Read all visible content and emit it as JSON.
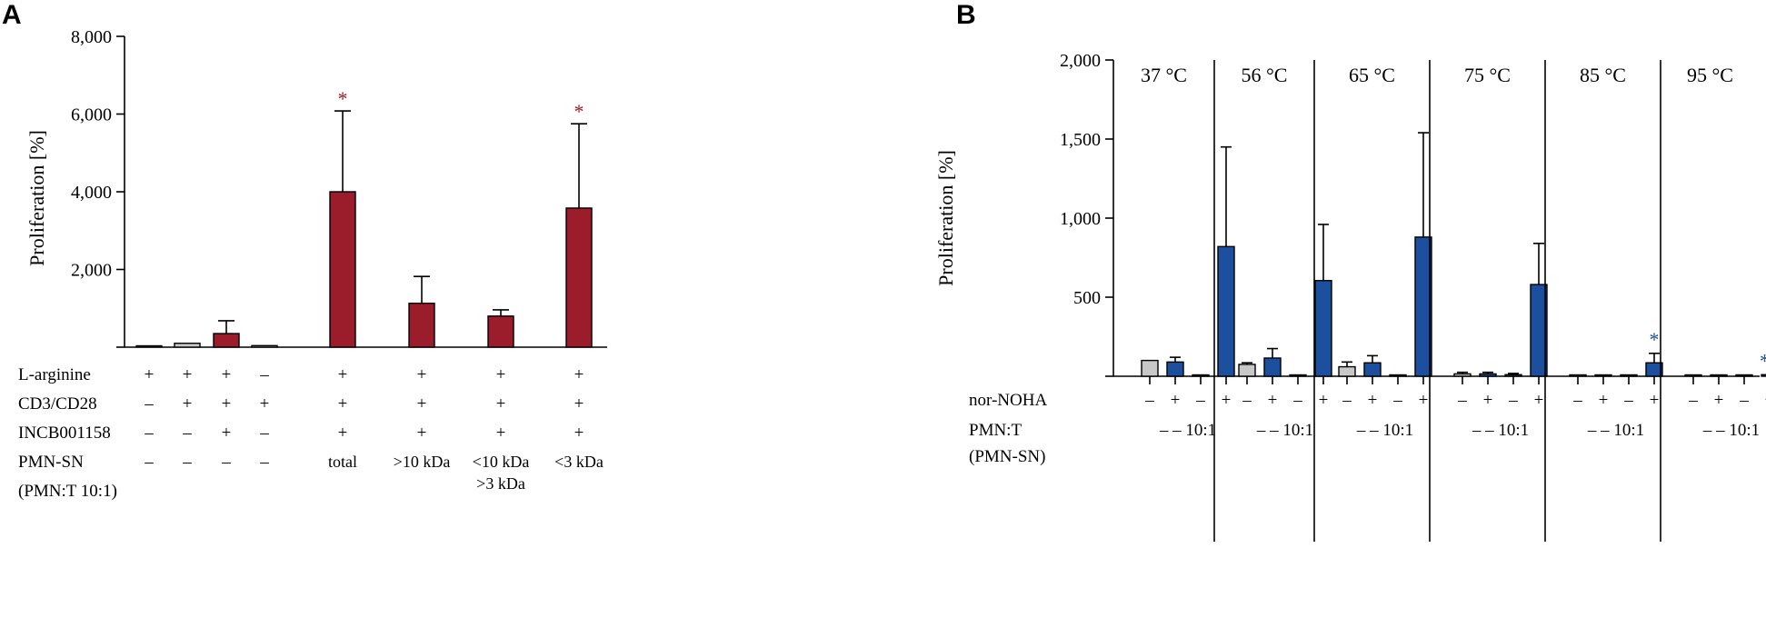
{
  "colors": {
    "red": "#9b1c2b",
    "blue": "#1d4f9f",
    "grey": "#c8c8c8",
    "axis": "#000000"
  },
  "chart_data": [
    {
      "type": "bar",
      "panel": "A",
      "ylabel": "Proliferation [%]",
      "ylim": [
        0,
        8000
      ],
      "yticks": [
        0,
        2000,
        4000,
        6000,
        8000
      ],
      "ytick_labels": [
        "",
        "2,000",
        "4,000",
        "6,000",
        "8,000"
      ],
      "values": [
        0,
        100,
        350,
        40,
        4000,
        1130,
        800,
        3580
      ],
      "errors": [
        0,
        0,
        330,
        0,
        2080,
        690,
        160,
        2170
      ],
      "colors": [
        "grey",
        "grey",
        "red",
        "grey",
        "red",
        "red",
        "red",
        "red"
      ],
      "significance": [
        "",
        "",
        "",
        "",
        "*",
        "",
        "",
        "*"
      ],
      "row_labels": [
        "L-arginine",
        "CD3/CD28",
        "INCB001158",
        "PMN-SN",
        "(PMN:T 10:1)"
      ],
      "rows": [
        [
          "+",
          "+",
          "+",
          "–",
          "+",
          "+",
          "+",
          "+"
        ],
        [
          "–",
          "+",
          "+",
          "+",
          "+",
          "+",
          "+",
          "+"
        ],
        [
          "–",
          "–",
          "+",
          "–",
          "+",
          "+",
          "+",
          "+"
        ],
        [
          "–",
          "–",
          "–",
          "–",
          "total",
          ">10 kDa",
          "<10 kDa",
          "<3 kDa"
        ]
      ],
      "pmn_extra": [
        "",
        "",
        "",
        "",
        "",
        "",
        ">3 kDa",
        ""
      ]
    },
    {
      "type": "bar",
      "panel": "B",
      "ylabel": "Proliferation [%]",
      "ylim": [
        0,
        2000
      ],
      "yticks": [
        0,
        500,
        1000,
        1500,
        2000
      ],
      "ytick_labels": [
        "",
        "500",
        "1,000",
        "1,500",
        "2,000"
      ],
      "groups": [
        {
          "label": "37 °C",
          "values": [
            100,
            90,
            0,
            820
          ],
          "errors": [
            0,
            30,
            0,
            630
          ],
          "colors": [
            "grey",
            "blue",
            "blue",
            "blue"
          ],
          "significance": ""
        },
        {
          "label": "56 °C",
          "values": [
            75,
            115,
            0,
            605
          ],
          "errors": [
            10,
            60,
            0,
            355
          ],
          "colors": [
            "grey",
            "blue",
            "blue",
            "blue"
          ],
          "significance": ""
        },
        {
          "label": "65 °C",
          "values": [
            60,
            85,
            0,
            880
          ],
          "errors": [
            30,
            45,
            0,
            660
          ],
          "colors": [
            "grey",
            "blue",
            "blue",
            "blue"
          ],
          "significance": ""
        },
        {
          "label": "75 °C",
          "values": [
            15,
            15,
            10,
            580
          ],
          "errors": [
            10,
            10,
            8,
            260
          ],
          "colors": [
            "grey",
            "blue",
            "blue",
            "blue"
          ],
          "significance": ""
        },
        {
          "label": "85 °C",
          "values": [
            5,
            3,
            3,
            85
          ],
          "errors": [
            0,
            0,
            0,
            60
          ],
          "colors": [
            "grey",
            "blue",
            "blue",
            "blue"
          ],
          "significance": "*"
        },
        {
          "label": "95 °C",
          "values": [
            3,
            2,
            2,
            10
          ],
          "errors": [
            0,
            0,
            0,
            0
          ],
          "colors": [
            "grey",
            "blue",
            "blue",
            "blue"
          ],
          "significance": "**"
        }
      ],
      "row_labels": [
        "nor-NOHA",
        "PMN:T",
        "(PMN-SN)"
      ],
      "nor_noha": [
        "–",
        "+",
        "–",
        "+"
      ],
      "pmn_t": "– – 10:1"
    }
  ]
}
